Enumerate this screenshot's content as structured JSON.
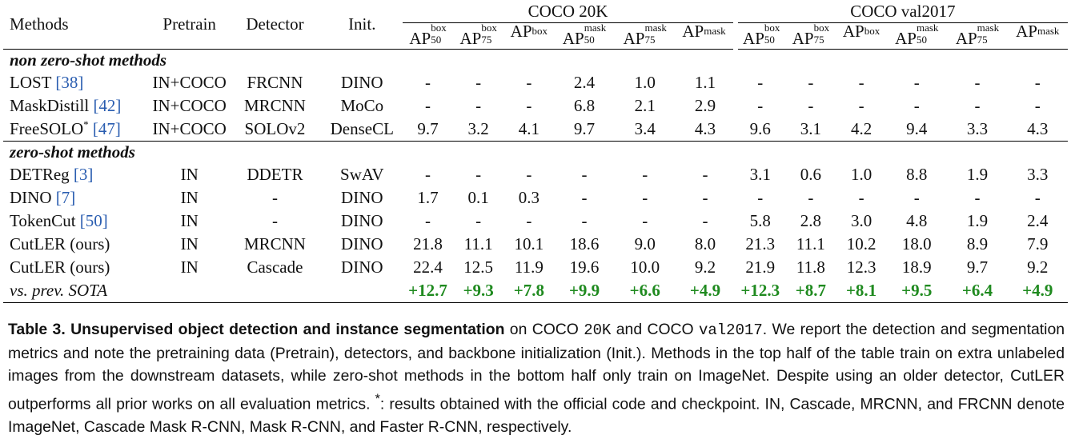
{
  "table": {
    "headers": {
      "methods": "Methods",
      "pretrain": "Pretrain",
      "detector": "Detector",
      "init": "Init.",
      "group1": "COCO 20K",
      "group2": "COCO val2017",
      "metric_base": "AP",
      "metrics": [
        {
          "sup": "box",
          "sub": "50"
        },
        {
          "sup": "box",
          "sub": "75"
        },
        {
          "sup": "box",
          "sub": ""
        },
        {
          "sup": "mask",
          "sub": "50"
        },
        {
          "sup": "mask",
          "sub": "75"
        },
        {
          "sup": "mask",
          "sub": ""
        }
      ]
    },
    "sections": [
      {
        "title": "non zero-shot methods",
        "rows": [
          {
            "method": "LOST ",
            "cite": "[38]",
            "star": "",
            "pretrain": "IN+COCO",
            "detector": "FRCNN",
            "init": "DINO",
            "values": [
              "-",
              "-",
              "-",
              "2.4",
              "1.0",
              "1.1",
              "-",
              "-",
              "-",
              "-",
              "-",
              "-"
            ]
          },
          {
            "method": "MaskDistill ",
            "cite": "[42]",
            "star": "",
            "pretrain": "IN+COCO",
            "detector": "MRCNN",
            "init": "MoCo",
            "values": [
              "-",
              "-",
              "-",
              "6.8",
              "2.1",
              "2.9",
              "-",
              "-",
              "-",
              "-",
              "-",
              "-"
            ]
          },
          {
            "method": "FreeSOLO",
            "cite": "[47]",
            "star": "*",
            "pretrain": "IN+COCO",
            "detector": "SOLOv2",
            "init": "DenseCL",
            "values": [
              "9.7",
              "3.2",
              "4.1",
              "9.7",
              "3.4",
              "4.3",
              "9.6",
              "3.1",
              "4.2",
              "9.4",
              "3.3",
              "4.3"
            ]
          }
        ]
      },
      {
        "title": "zero-shot methods",
        "rows": [
          {
            "method": "DETReg ",
            "cite": "[3]",
            "star": "",
            "pretrain": "IN",
            "detector": "DDETR",
            "init": "SwAV",
            "values": [
              "-",
              "-",
              "-",
              "-",
              "-",
              "-",
              "3.1",
              "0.6",
              "1.0",
              "8.8",
              "1.9",
              "3.3"
            ]
          },
          {
            "method": "DINO ",
            "cite": "[7]",
            "star": "",
            "pretrain": "IN",
            "detector": "-",
            "init": "DINO",
            "values": [
              "1.7",
              "0.1",
              "0.3",
              "-",
              "-",
              "-",
              "-",
              "-",
              "-",
              "-",
              "-",
              "-"
            ]
          },
          {
            "method": "TokenCut ",
            "cite": "[50]",
            "star": "",
            "pretrain": "IN",
            "detector": "-",
            "init": "DINO",
            "values": [
              "-",
              "-",
              "-",
              "-",
              "-",
              "-",
              "5.8",
              "2.8",
              "3.0",
              "4.8",
              "1.9",
              "2.4"
            ]
          },
          {
            "method": "CutLER (ours)",
            "cite": "",
            "star": "",
            "pretrain": "IN",
            "detector": "MRCNN",
            "init": "DINO",
            "values": [
              "21.8",
              "11.1",
              "10.1",
              "18.6",
              "9.0",
              "8.0",
              "21.3",
              "11.1",
              "10.2",
              "18.0",
              "8.9",
              "7.9"
            ]
          },
          {
            "method": "CutLER (ours)",
            "cite": "",
            "star": "",
            "pretrain": "IN",
            "detector": "Cascade",
            "init": "DINO",
            "values": [
              "22.4",
              "12.5",
              "11.9",
              "19.6",
              "10.0",
              "9.2",
              "21.9",
              "11.8",
              "12.3",
              "18.9",
              "9.7",
              "9.2"
            ]
          }
        ]
      }
    ],
    "sota_row": {
      "label": "vs. prev. SOTA",
      "values": [
        "+12.7",
        "+9.3",
        "+7.8",
        "+9.9",
        "+6.6",
        "+4.9",
        "+12.3",
        "+8.7",
        "+8.1",
        "+9.5",
        "+6.4",
        "+4.9"
      ],
      "color": "#1f8a1f"
    }
  },
  "caption": {
    "label": "Table 3.",
    "title": "Unsupervised object detection and instance segmentation",
    "t1": " on COCO ",
    "code1": "20K",
    "t2": " and COCO ",
    "code2": "val2017",
    "t3": ". We report the detection and segmentation metrics and note the pretraining data (Pretrain), detectors, and backbone initialization (Init.). Methods in the top half of the table train on extra unlabeled images from the downstream datasets, while zero-shot methods in the bottom half only train on ImageNet. Despite using an older detector, CutLER outperforms all prior works on all evaluation metrics. ",
    "star": "*",
    "t4": ": results obtained with the official code and checkpoint. IN, Cascade, MRCNN, and FRCNN denote ImageNet, Cascade Mask R-CNN, Mask R-CNN, and Faster R-CNN, respectively."
  }
}
